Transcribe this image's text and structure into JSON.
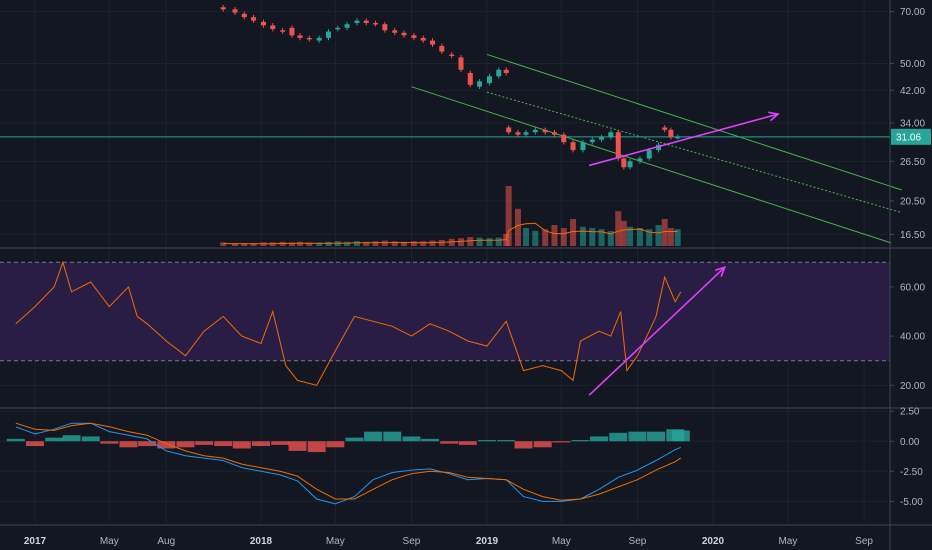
{
  "chart_data": [
    {
      "type": "candlestick",
      "panel": "price",
      "yscale": "log",
      "ylim": [
        15.5,
        74
      ],
      "yticks": [
        "70.00",
        "50.00",
        "42.00",
        "34.00",
        "26.50",
        "20.50",
        "16.50"
      ],
      "last_price": "31.06",
      "colors": {
        "up": "#26a69a",
        "down": "#ef5350",
        "last_price_line": "#26a69a",
        "channel": "#4caf50",
        "trendline": "#e040fb"
      },
      "x": [
        "2017-11-01",
        "2017-11-20",
        "2017-12-05",
        "2017-12-20",
        "2018-01-05",
        "2018-01-20",
        "2018-02-05",
        "2018-02-20",
        "2018-03-05",
        "2018-03-20",
        "2018-04-05",
        "2018-04-20",
        "2018-05-05",
        "2018-05-20",
        "2018-06-05",
        "2018-06-20",
        "2018-07-05",
        "2018-07-20",
        "2018-08-05",
        "2018-08-20",
        "2018-09-05",
        "2018-09-20",
        "2018-10-05",
        "2018-10-20",
        "2018-11-05",
        "2018-11-20",
        "2018-12-05",
        "2018-12-20",
        "2019-01-05",
        "2019-01-20",
        "2019-02-01",
        "2019-02-05",
        "2019-02-20",
        "2019-03-05",
        "2019-03-20",
        "2019-04-05",
        "2019-04-20",
        "2019-05-05",
        "2019-05-20",
        "2019-06-05",
        "2019-06-20",
        "2019-07-05",
        "2019-07-20",
        "2019-08-01",
        "2019-08-10",
        "2019-08-20",
        "2019-09-05",
        "2019-09-20",
        "2019-10-05",
        "2019-10-15",
        "2019-10-25",
        "2019-11-05"
      ],
      "open": [
        72.0,
        71.0,
        69.0,
        67.5,
        65.5,
        64.0,
        62.0,
        63.0,
        60.0,
        59.0,
        58.0,
        59.0,
        62.5,
        63.0,
        65.0,
        66.0,
        65.0,
        64.5,
        62.0,
        61.0,
        60.0,
        59.0,
        58.0,
        56.0,
        53.0,
        52.0,
        47.0,
        43.0,
        44.0,
        46.0,
        48.0,
        33.0,
        32.0,
        31.5,
        32.0,
        32.5,
        32.0,
        31.5,
        30.0,
        28.5,
        30.0,
        30.5,
        31.0,
        32.0,
        27.0,
        25.5,
        26.5,
        27.0,
        28.5,
        33.0,
        32.5,
        31.0
      ],
      "close": [
        71.0,
        69.5,
        67.5,
        66.0,
        64.0,
        62.5,
        61.5,
        60.0,
        59.0,
        58.5,
        59.0,
        61.5,
        63.0,
        64.5,
        66.0,
        65.0,
        64.5,
        62.0,
        61.0,
        60.0,
        59.0,
        58.0,
        56.5,
        54.0,
        52.5,
        48.0,
        43.5,
        44.5,
        46.0,
        48.0,
        47.0,
        32.0,
        31.5,
        32.0,
        32.5,
        32.0,
        31.5,
        30.0,
        28.5,
        30.0,
        30.5,
        31.0,
        32.0,
        27.0,
        25.5,
        26.5,
        27.0,
        28.5,
        29.5,
        32.5,
        31.0,
        31.06
      ],
      "volume_relative": [
        0.06,
        0.05,
        0.05,
        0.05,
        0.06,
        0.06,
        0.07,
        0.06,
        0.07,
        0.06,
        0.06,
        0.07,
        0.08,
        0.07,
        0.08,
        0.07,
        0.08,
        0.09,
        0.08,
        0.07,
        0.08,
        0.08,
        0.09,
        0.1,
        0.12,
        0.13,
        0.15,
        0.14,
        0.13,
        0.14,
        0.2,
        1.0,
        0.62,
        0.3,
        0.25,
        0.28,
        0.35,
        0.3,
        0.45,
        0.32,
        0.3,
        0.28,
        0.25,
        0.58,
        0.42,
        0.32,
        0.3,
        0.28,
        0.35,
        0.45,
        0.3,
        0.28
      ]
    },
    {
      "type": "line",
      "panel": "rsi",
      "ylim": [
        12,
        75
      ],
      "yticks": [
        "60.00",
        "40.00",
        "20.00"
      ],
      "band": [
        30,
        70
      ],
      "colors": {
        "line": "#ef6c00",
        "band_fill": "#2a1d45",
        "band_border": "#787b86",
        "arrow": "#e040fb"
      },
      "x": [
        "2016-12-01",
        "2017-01-01",
        "2017-02-01",
        "2017-02-15",
        "2017-03-01",
        "2017-04-01",
        "2017-05-01",
        "2017-06-01",
        "2017-06-15",
        "2017-07-01",
        "2017-08-01",
        "2017-09-01",
        "2017-10-01",
        "2017-11-01",
        "2017-12-01",
        "2018-01-01",
        "2018-01-20",
        "2018-02-10",
        "2018-03-01",
        "2018-04-01",
        "2018-05-01",
        "2018-06-01",
        "2018-07-01",
        "2018-08-01",
        "2018-09-01",
        "2018-10-01",
        "2018-11-01",
        "2018-12-01",
        "2019-01-01",
        "2019-02-01",
        "2019-03-01",
        "2019-04-01",
        "2019-05-01",
        "2019-05-20",
        "2019-06-01",
        "2019-07-01",
        "2019-07-20",
        "2019-08-05",
        "2019-08-15",
        "2019-09-01",
        "2019-09-20",
        "2019-10-01",
        "2019-10-15",
        "2019-11-01",
        "2019-11-10"
      ],
      "values": [
        45,
        52,
        60,
        70,
        58,
        62,
        52,
        60,
        48,
        45,
        38,
        32,
        42,
        48,
        40,
        37,
        50,
        28,
        22,
        20,
        34,
        48,
        46,
        44,
        40,
        45,
        42,
        38,
        36,
        46,
        26,
        28,
        26,
        22,
        38,
        42,
        40,
        50,
        26,
        32,
        42,
        48,
        64,
        54,
        58
      ]
    },
    {
      "type": "line",
      "panel": "macd",
      "ylim": [
        -6.8,
        2.6
      ],
      "yticks": [
        "2.50",
        "0.00",
        "-2.50",
        "-5.00"
      ],
      "colors": {
        "macd": "#2196f3",
        "signal": "#ef6c00",
        "hist_pos": "#26a69a",
        "hist_neg": "#ef5350"
      },
      "x": [
        "2016-12-01",
        "2017-01-01",
        "2017-02-01",
        "2017-03-01",
        "2017-04-01",
        "2017-05-01",
        "2017-06-01",
        "2017-07-01",
        "2017-08-01",
        "2017-09-01",
        "2017-10-01",
        "2017-11-01",
        "2017-12-01",
        "2018-01-01",
        "2018-02-01",
        "2018-03-01",
        "2018-04-01",
        "2018-05-01",
        "2018-06-01",
        "2018-07-01",
        "2018-08-01",
        "2018-09-01",
        "2018-10-01",
        "2018-11-01",
        "2018-12-01",
        "2019-01-01",
        "2019-02-01",
        "2019-03-01",
        "2019-04-01",
        "2019-05-01",
        "2019-06-01",
        "2019-07-01",
        "2019-08-01",
        "2019-09-01",
        "2019-10-01",
        "2019-11-01",
        "2019-11-10"
      ],
      "macd": [
        1.2,
        0.6,
        1.0,
        1.5,
        1.5,
        0.8,
        0.5,
        0.2,
        -0.8,
        -1.2,
        -1.4,
        -1.6,
        -2.2,
        -2.5,
        -2.8,
        -3.3,
        -4.8,
        -5.2,
        -4.6,
        -3.2,
        -2.6,
        -2.4,
        -2.3,
        -2.7,
        -3.2,
        -3.1,
        -3.2,
        -4.6,
        -5.0,
        -5.0,
        -4.8,
        -4.0,
        -3.0,
        -2.4,
        -1.6,
        -0.7,
        -0.5
      ],
      "signal": [
        1.5,
        1.0,
        0.9,
        1.3,
        1.5,
        1.2,
        0.8,
        0.5,
        -0.2,
        -0.8,
        -1.2,
        -1.4,
        -1.9,
        -2.2,
        -2.5,
        -2.9,
        -4.0,
        -4.8,
        -4.8,
        -4.0,
        -3.2,
        -2.7,
        -2.5,
        -2.6,
        -3.0,
        -3.1,
        -3.2,
        -4.0,
        -4.6,
        -4.9,
        -4.8,
        -4.4,
        -3.8,
        -3.2,
        -2.4,
        -1.7,
        -1.4
      ],
      "histogram": [
        0.2,
        -0.4,
        0.3,
        0.5,
        0.4,
        -0.2,
        -0.5,
        -0.4,
        -0.6,
        -0.5,
        -0.3,
        -0.4,
        -0.6,
        -0.4,
        -0.3,
        -0.8,
        -0.9,
        -0.5,
        0.3,
        0.8,
        0.8,
        0.4,
        0.2,
        -0.2,
        -0.3,
        0.1,
        0.1,
        -0.6,
        -0.5,
        -0.1,
        0.1,
        0.4,
        0.7,
        0.8,
        0.8,
        1.0,
        0.9
      ]
    }
  ],
  "x_axis": {
    "ticks": [
      {
        "date": "2017-01-01",
        "label": "2017",
        "bold": true
      },
      {
        "date": "2017-05-01",
        "label": "May",
        "bold": false
      },
      {
        "date": "2017-08-01",
        "label": "Aug",
        "bold": false
      },
      {
        "date": "2018-01-01",
        "label": "2018",
        "bold": true
      },
      {
        "date": "2018-05-01",
        "label": "May",
        "bold": false
      },
      {
        "date": "2018-09-01",
        "label": "Sep",
        "bold": false
      },
      {
        "date": "2019-01-01",
        "label": "2019",
        "bold": true
      },
      {
        "date": "2019-05-01",
        "label": "May",
        "bold": false
      },
      {
        "date": "2019-09-01",
        "label": "Sep",
        "bold": false
      },
      {
        "date": "2020-01-01",
        "label": "2020",
        "bold": true
      },
      {
        "date": "2020-05-01",
        "label": "May",
        "bold": false
      },
      {
        "date": "2020-09-01",
        "label": "Sep",
        "bold": false
      }
    ]
  },
  "drawings": {
    "price_channel": {
      "upper": [
        [
          "2019-01-01",
          53
        ],
        [
          "2020-11-01",
          22
        ]
      ],
      "middle": [
        [
          "2019-01-01",
          41.5
        ],
        [
          "2020-11-01",
          19
        ]
      ],
      "lower": [
        [
          "2018-09-01",
          43
        ],
        [
          "2020-10-15",
          15.6
        ]
      ]
    },
    "price_trend_arrow": [
      [
        "2019-06-15",
        25.8
      ],
      [
        "2020-04-15",
        36
      ]
    ],
    "rsi_trend_arrow": [
      [
        "2019-06-15",
        16
      ],
      [
        "2020-01-20",
        68
      ]
    ]
  }
}
